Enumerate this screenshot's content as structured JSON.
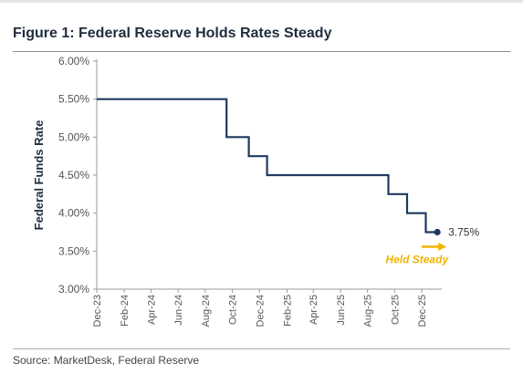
{
  "figure": {
    "title": "Figure 1: Federal Reserve Holds Rates Steady",
    "source": "Source: MarketDesk, Federal Reserve"
  },
  "colors": {
    "line": "#1f3a5f",
    "accent": "#f2b400",
    "text": "#1f2d3d"
  },
  "chart_data": {
    "type": "line",
    "ylabel": "Federal Funds Rate",
    "xlabel": "",
    "ylim": [
      3.0,
      6.0
    ],
    "y_ticks": [
      "6.00%",
      "5.50%",
      "5.00%",
      "4.50%",
      "4.00%",
      "3.50%",
      "3.00%"
    ],
    "y_tick_values": [
      6.0,
      5.5,
      5.0,
      4.5,
      4.0,
      3.5,
      3.0
    ],
    "x_ticks": [
      "Dec-23",
      "Feb-24",
      "Apr-24",
      "Jun-24",
      "Aug-24",
      "Oct-24",
      "Dec-24",
      "Feb-25",
      "Apr-25",
      "Jun-25",
      "Aug-25",
      "Oct-25",
      "Dec-25"
    ],
    "x_tick_dates": [
      "2023-12-01",
      "2024-02-01",
      "2024-04-01",
      "2024-06-01",
      "2024-08-01",
      "2024-10-01",
      "2024-12-01",
      "2025-02-01",
      "2025-04-01",
      "2025-06-01",
      "2025-08-01",
      "2025-10-01",
      "2025-12-01"
    ],
    "x_range": [
      "2023-12-01",
      "2026-01-15"
    ],
    "grid": false,
    "series": [
      {
        "points": [
          [
            "2023-12-01",
            5.5
          ],
          [
            "2024-09-18",
            5.5
          ],
          [
            "2024-09-18",
            5.0
          ],
          [
            "2024-11-07",
            5.0
          ],
          [
            "2024-11-07",
            4.75
          ],
          [
            "2024-12-18",
            4.75
          ],
          [
            "2024-12-18",
            4.5
          ],
          [
            "2025-09-17",
            4.5
          ],
          [
            "2025-09-17",
            4.25
          ],
          [
            "2025-10-29",
            4.25
          ],
          [
            "2025-10-29",
            4.0
          ],
          [
            "2025-12-10",
            4.0
          ],
          [
            "2025-12-10",
            3.75
          ],
          [
            "2026-01-05",
            3.75
          ]
        ]
      }
    ],
    "end_marker": {
      "date": "2026-01-05",
      "value": 3.75,
      "label": "3.75%"
    },
    "annotation": {
      "text": "Held Steady"
    }
  }
}
